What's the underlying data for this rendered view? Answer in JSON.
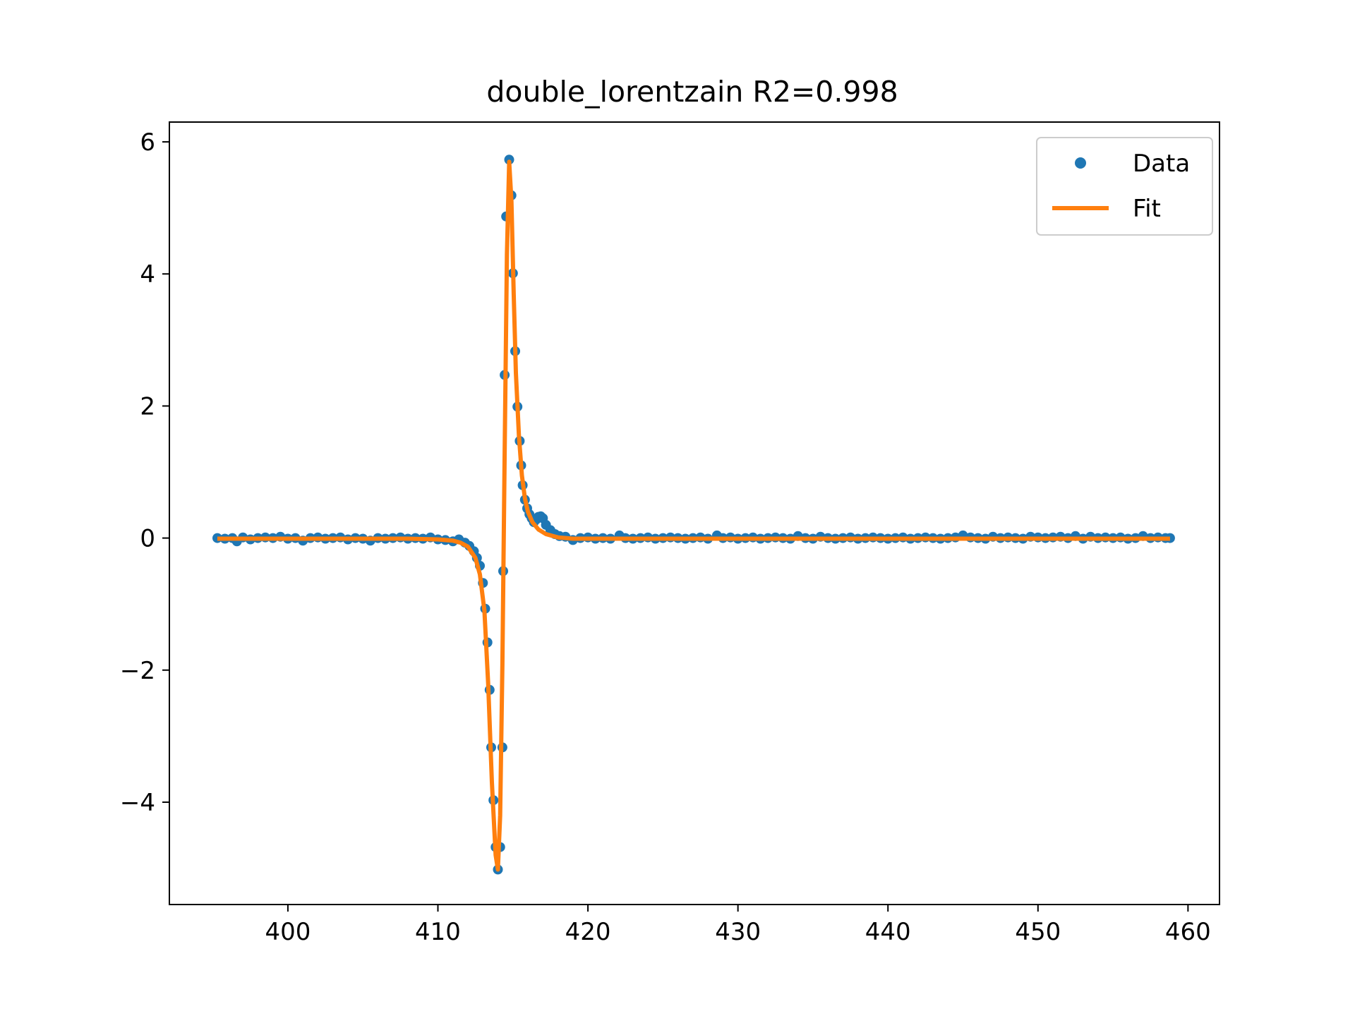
{
  "chart_data": {
    "type": "scatter",
    "title": "double_lorentzain R2=0.998",
    "xlabel": "",
    "ylabel": "",
    "xlim": [
      392.1,
      462.1
    ],
    "ylim": [
      -5.55,
      6.3
    ],
    "xticks": [
      400,
      410,
      420,
      430,
      440,
      450,
      460
    ],
    "yticks": [
      -4,
      -2,
      0,
      2,
      4,
      6
    ],
    "ytick_labels": [
      "−4",
      "−2",
      "0",
      "2",
      "4",
      "6"
    ],
    "grid": false,
    "legend_position": "upper right",
    "series": [
      {
        "name": "Data",
        "kind": "scatter",
        "color": "#1f77b4",
        "points": [
          [
            395.3,
            0.0
          ],
          [
            395.8,
            -0.01
          ],
          [
            396.3,
            0.0
          ],
          [
            396.6,
            -0.05
          ],
          [
            397.0,
            0.01
          ],
          [
            397.5,
            -0.02
          ],
          [
            398.0,
            0.0
          ],
          [
            398.5,
            0.01
          ],
          [
            399.0,
            0.0
          ],
          [
            399.5,
            0.02
          ],
          [
            400.0,
            -0.01
          ],
          [
            400.5,
            0.0
          ],
          [
            401.0,
            -0.04
          ],
          [
            401.5,
            0.0
          ],
          [
            402.0,
            0.01
          ],
          [
            402.5,
            -0.01
          ],
          [
            403.0,
            0.0
          ],
          [
            403.5,
            0.01
          ],
          [
            404.0,
            -0.02
          ],
          [
            404.5,
            0.0
          ],
          [
            405.0,
            -0.01
          ],
          [
            405.5,
            -0.04
          ],
          [
            406.0,
            0.0
          ],
          [
            406.5,
            -0.01
          ],
          [
            407.0,
            0.0
          ],
          [
            407.5,
            0.01
          ],
          [
            408.0,
            -0.01
          ],
          [
            408.5,
            0.0
          ],
          [
            409.0,
            -0.01
          ],
          [
            409.5,
            0.01
          ],
          [
            410.0,
            -0.02
          ],
          [
            410.5,
            -0.03
          ],
          [
            411.0,
            -0.05
          ],
          [
            411.4,
            -0.02
          ],
          [
            411.8,
            -0.07
          ],
          [
            412.1,
            -0.12
          ],
          [
            412.4,
            -0.2
          ],
          [
            412.6,
            -0.3
          ],
          [
            412.8,
            -0.42
          ],
          [
            413.0,
            -0.68
          ],
          [
            413.15,
            -1.07
          ],
          [
            413.3,
            -1.58
          ],
          [
            413.45,
            -2.3
          ],
          [
            413.55,
            -3.17
          ],
          [
            413.7,
            -3.97
          ],
          [
            413.85,
            -4.68
          ],
          [
            414.0,
            -5.02
          ],
          [
            414.15,
            -4.68
          ],
          [
            414.3,
            -3.17
          ],
          [
            414.35,
            -0.5
          ],
          [
            414.45,
            2.47
          ],
          [
            414.55,
            4.87
          ],
          [
            414.75,
            5.73
          ],
          [
            414.9,
            5.19
          ],
          [
            415.0,
            4.01
          ],
          [
            415.15,
            2.83
          ],
          [
            415.3,
            1.99
          ],
          [
            415.45,
            1.47
          ],
          [
            415.55,
            1.1
          ],
          [
            415.65,
            0.8
          ],
          [
            415.8,
            0.58
          ],
          [
            415.95,
            0.45
          ],
          [
            416.1,
            0.36
          ],
          [
            416.25,
            0.3
          ],
          [
            416.4,
            0.24
          ],
          [
            416.55,
            0.28
          ],
          [
            416.7,
            0.32
          ],
          [
            416.85,
            0.33
          ],
          [
            417.0,
            0.3
          ],
          [
            417.2,
            0.2
          ],
          [
            417.5,
            0.12
          ],
          [
            417.8,
            0.06
          ],
          [
            418.1,
            0.03
          ],
          [
            418.5,
            0.02
          ],
          [
            419.0,
            -0.03
          ],
          [
            419.5,
            0.0
          ],
          [
            420.0,
            0.01
          ],
          [
            420.5,
            -0.01
          ],
          [
            421.0,
            0.0
          ],
          [
            421.5,
            -0.01
          ],
          [
            422.1,
            0.04
          ],
          [
            422.5,
            0.0
          ],
          [
            423.0,
            -0.01
          ],
          [
            423.5,
            0.0
          ],
          [
            424.0,
            0.01
          ],
          [
            424.5,
            -0.01
          ],
          [
            425.0,
            0.0
          ],
          [
            425.5,
            0.01
          ],
          [
            426.0,
            0.0
          ],
          [
            426.5,
            -0.01
          ],
          [
            427.0,
            0.0
          ],
          [
            427.5,
            0.01
          ],
          [
            428.0,
            -0.01
          ],
          [
            428.6,
            0.04
          ],
          [
            429.0,
            0.0
          ],
          [
            429.5,
            0.01
          ],
          [
            430.0,
            -0.01
          ],
          [
            430.5,
            0.0
          ],
          [
            431.0,
            0.01
          ],
          [
            431.5,
            -0.01
          ],
          [
            432.0,
            0.0
          ],
          [
            432.5,
            0.01
          ],
          [
            433.0,
            0.0
          ],
          [
            433.5,
            -0.01
          ],
          [
            434.0,
            0.03
          ],
          [
            434.5,
            0.0
          ],
          [
            435.0,
            -0.01
          ],
          [
            435.5,
            0.02
          ],
          [
            436.0,
            0.0
          ],
          [
            436.5,
            -0.01
          ],
          [
            437.0,
            0.0
          ],
          [
            437.5,
            0.01
          ],
          [
            438.0,
            -0.01
          ],
          [
            438.5,
            0.0
          ],
          [
            439.0,
            0.01
          ],
          [
            439.5,
            0.0
          ],
          [
            440.0,
            -0.01
          ],
          [
            440.5,
            0.0
          ],
          [
            441.0,
            0.01
          ],
          [
            441.5,
            -0.01
          ],
          [
            442.0,
            0.0
          ],
          [
            442.5,
            0.01
          ],
          [
            443.0,
            0.0
          ],
          [
            443.5,
            -0.01
          ],
          [
            444.0,
            0.0
          ],
          [
            444.5,
            0.01
          ],
          [
            445.0,
            0.04
          ],
          [
            445.5,
            0.01
          ],
          [
            446.0,
            0.0
          ],
          [
            446.5,
            -0.01
          ],
          [
            447.0,
            0.02
          ],
          [
            447.5,
            0.0
          ],
          [
            448.0,
            0.01
          ],
          [
            448.5,
            0.0
          ],
          [
            449.0,
            -0.01
          ],
          [
            449.5,
            0.02
          ],
          [
            450.0,
            0.01
          ],
          [
            450.5,
            0.0
          ],
          [
            451.0,
            0.01
          ],
          [
            451.5,
            0.02
          ],
          [
            452.0,
            0.0
          ],
          [
            452.5,
            0.03
          ],
          [
            453.0,
            -0.01
          ],
          [
            453.5,
            0.02
          ],
          [
            454.0,
            0.0
          ],
          [
            454.5,
            0.01
          ],
          [
            455.0,
            0.0
          ],
          [
            455.5,
            0.01
          ],
          [
            456.0,
            -0.01
          ],
          [
            456.5,
            0.0
          ],
          [
            457.0,
            0.03
          ],
          [
            457.5,
            0.0
          ],
          [
            458.0,
            0.01
          ],
          [
            458.5,
            0.0
          ],
          [
            458.8,
            0.0
          ]
        ]
      },
      {
        "name": "Fit",
        "kind": "line",
        "color": "#ff7f0e",
        "points": [
          [
            395.3,
            -0.01
          ],
          [
            400.0,
            -0.01
          ],
          [
            405.0,
            -0.01
          ],
          [
            408.0,
            -0.01
          ],
          [
            410.0,
            -0.02
          ],
          [
            411.0,
            -0.04
          ],
          [
            411.5,
            -0.07
          ],
          [
            412.0,
            -0.13
          ],
          [
            412.5,
            -0.3
          ],
          [
            412.8,
            -0.55
          ],
          [
            413.1,
            -1.1
          ],
          [
            413.35,
            -2.2
          ],
          [
            413.6,
            -3.7
          ],
          [
            413.85,
            -4.8
          ],
          [
            414.0,
            -5.02
          ],
          [
            414.15,
            -4.2
          ],
          [
            414.3,
            -1.9
          ],
          [
            414.45,
            1.3
          ],
          [
            414.6,
            4.3
          ],
          [
            414.75,
            5.7
          ],
          [
            414.9,
            5.1
          ],
          [
            415.05,
            3.7
          ],
          [
            415.2,
            2.5
          ],
          [
            415.4,
            1.55
          ],
          [
            415.6,
            0.95
          ],
          [
            415.8,
            0.6
          ],
          [
            416.0,
            0.4
          ],
          [
            416.3,
            0.24
          ],
          [
            416.7,
            0.13
          ],
          [
            417.2,
            0.06
          ],
          [
            418.0,
            0.01
          ],
          [
            419.0,
            -0.01
          ],
          [
            420.0,
            -0.01
          ],
          [
            425.0,
            -0.01
          ],
          [
            430.0,
            -0.01
          ],
          [
            440.0,
            -0.01
          ],
          [
            450.0,
            -0.01
          ],
          [
            458.8,
            -0.01
          ]
        ]
      }
    ]
  }
}
